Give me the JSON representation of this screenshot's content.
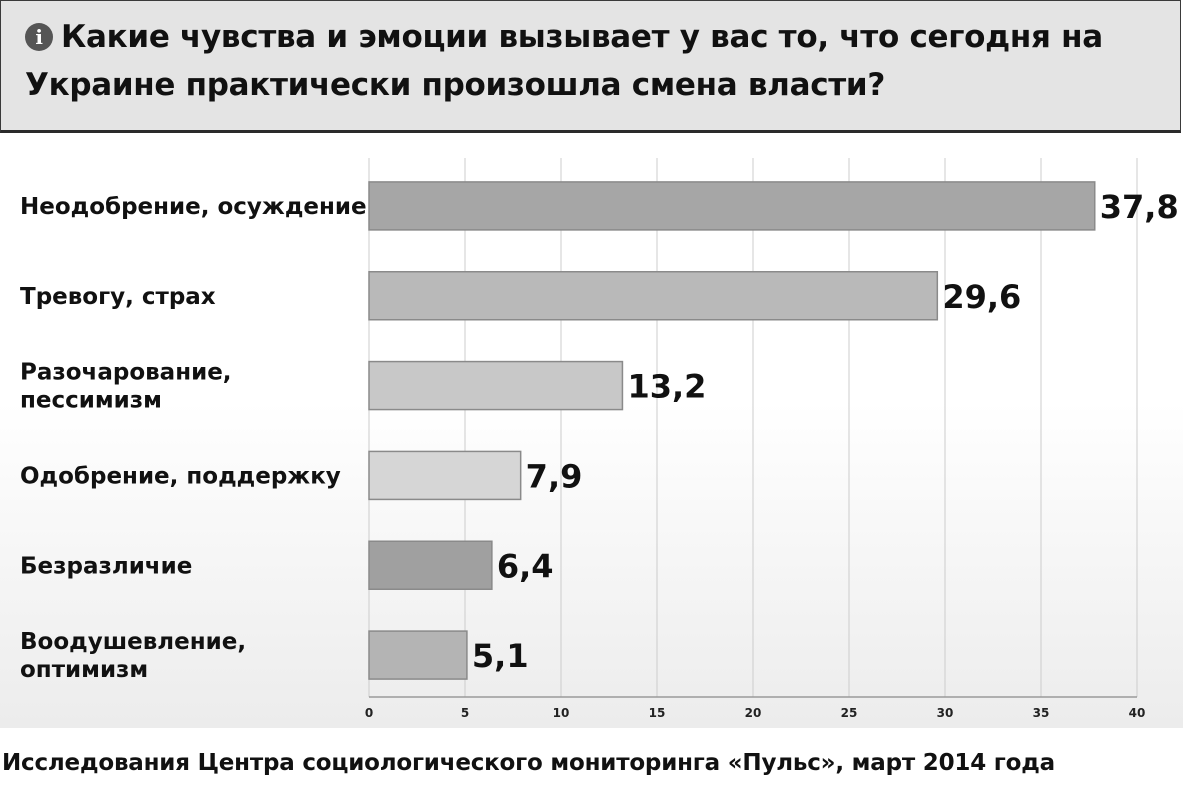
{
  "header": {
    "title": "Какие чувства и эмоции вызывает у вас то, что сегодня на Украине практически произошла смена власти?"
  },
  "footer": {
    "source": "Исследования Центра социологического мониторинга «Пульс», март 2014 года"
  },
  "chart_data": {
    "type": "bar",
    "orientation": "horizontal",
    "title": "Какие чувства и эмоции вызывает у вас то, что сегодня на Украине практически произошла смена власти?",
    "categories": [
      [
        "Неодобрение, осуждение"
      ],
      [
        "Тревогу, страх"
      ],
      [
        "Разочарование,",
        "пессимизм"
      ],
      [
        "Одобрение, поддержку"
      ],
      [
        "Безразличие"
      ],
      [
        "Воодушевление,",
        "оптимизм"
      ]
    ],
    "values": [
      37.8,
      29.6,
      13.2,
      7.9,
      6.4,
      5.1
    ],
    "value_labels": [
      "37,8",
      "29,6",
      "13,2",
      "7,9",
      "6,4",
      "5,1"
    ],
    "xlim": [
      0,
      40
    ],
    "xticks": [
      0,
      5,
      10,
      15,
      20,
      25,
      30,
      35,
      40
    ],
    "xlabel": "",
    "ylabel": "",
    "grid": true,
    "colors": {
      "bar_fills": [
        "#a6a6a6",
        "#b9b9b9",
        "#c8c8c8",
        "#d6d6d6",
        "#a0a0a0",
        "#b4b4b4"
      ],
      "bar_stroke": "#8a8a8a",
      "grid": "#cccccc",
      "axis": "#9a9a9a"
    }
  }
}
